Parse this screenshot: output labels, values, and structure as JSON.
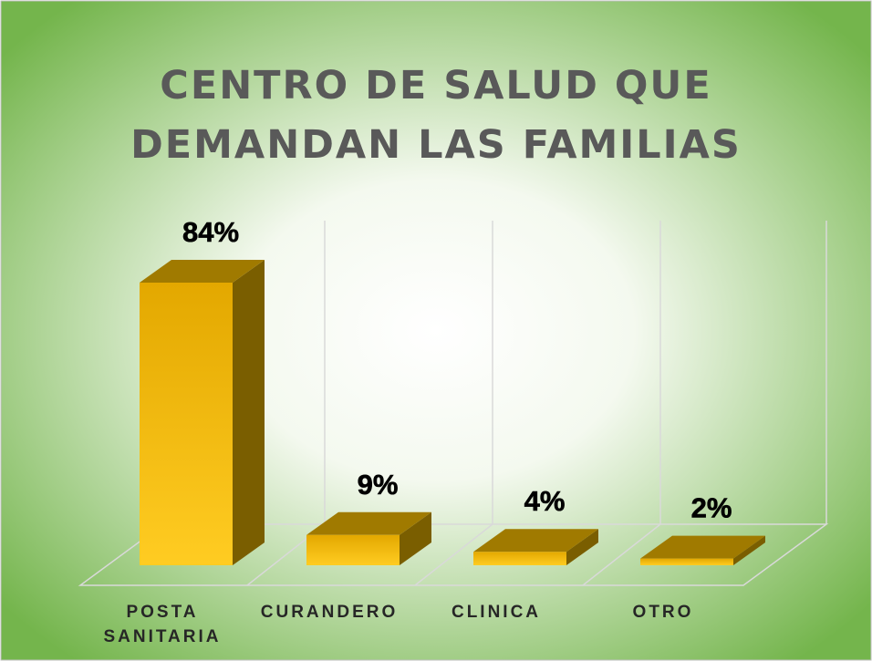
{
  "chart_data": {
    "type": "bar3d",
    "title_lines": [
      "CENTRO DE SALUD QUE",
      "DEMANDAN LAS FAMILIAS"
    ],
    "categories": [
      "POSTA SANITARIA",
      "CURANDERO",
      "CLINICA",
      "OTRO"
    ],
    "values": [
      84,
      9,
      4,
      2
    ],
    "value_labels": [
      "84%",
      "9%",
      "4%",
      "2%"
    ],
    "color": "#f2b800"
  }
}
